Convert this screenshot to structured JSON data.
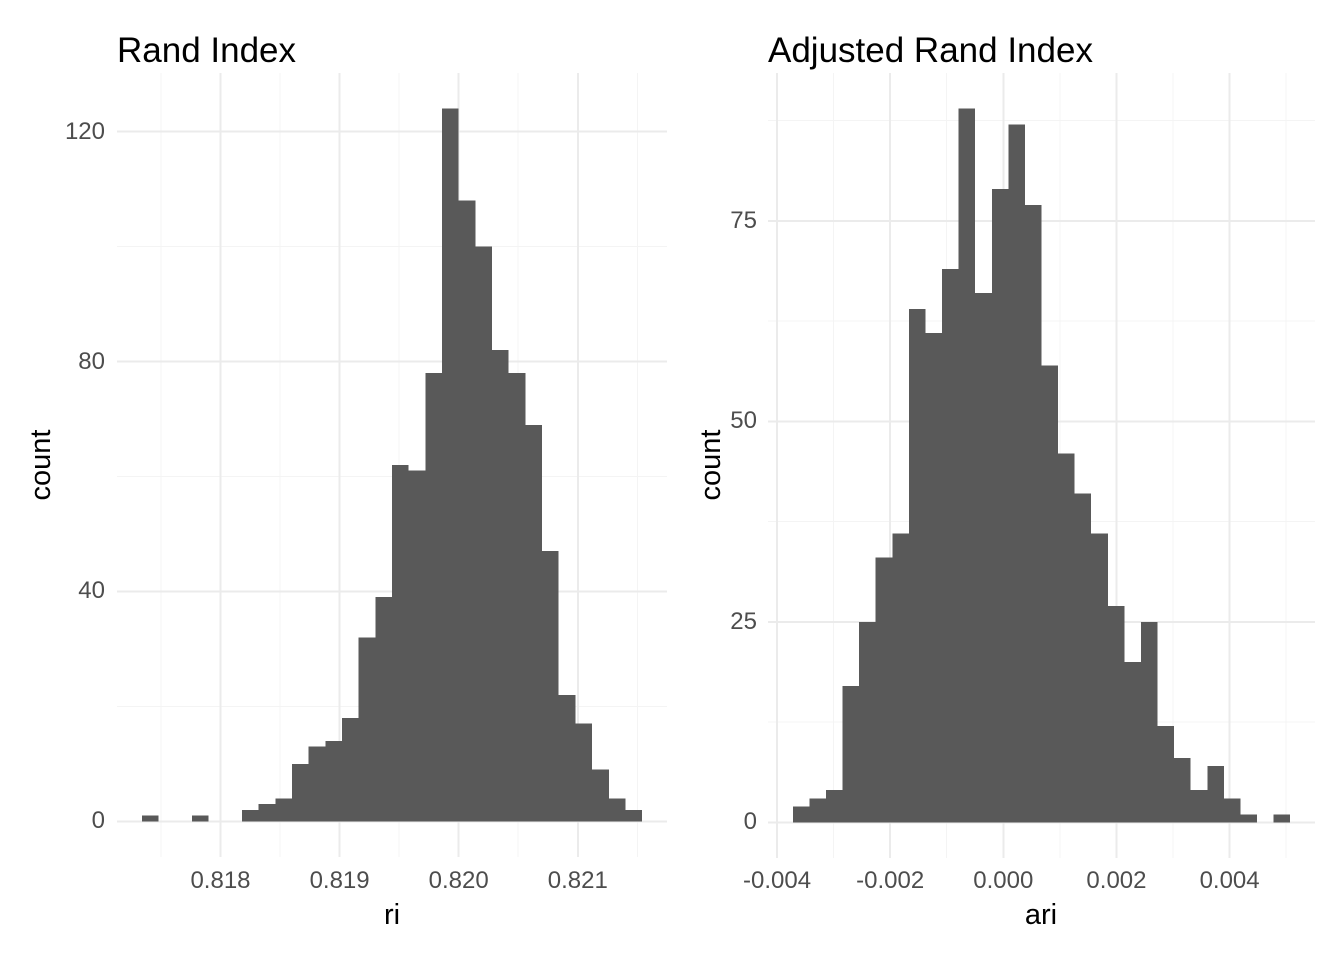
{
  "figure": {
    "background": "#FFFFFF",
    "bar_fill": "#595959",
    "grid_major_color": "#EBEBEB",
    "grid_minor_color": "#F4F4F4",
    "tick_label_color": "#4D4D4D",
    "title_color": "#000000"
  },
  "chart_data": [
    {
      "type": "bar",
      "subtype": "histogram",
      "title": "Rand Index",
      "xlabel": "ri",
      "ylabel": "count",
      "grid": true,
      "legend": "none",
      "bin_start": 0.81734,
      "bin_width": 0.00014,
      "counts": [
        1,
        0,
        0,
        1,
        0,
        0,
        2,
        3,
        4,
        10,
        13,
        14,
        18,
        32,
        39,
        62,
        61,
        78,
        124,
        108,
        100,
        82,
        78,
        69,
        47,
        22,
        17,
        9,
        4,
        2
      ],
      "total_n": 1000,
      "x_ticks": {
        "values": [
          0.818,
          0.819,
          0.82,
          0.821
        ],
        "labels": [
          "0.818",
          "0.819",
          "0.820",
          "0.821"
        ]
      },
      "y_ticks": {
        "values": [
          0,
          40,
          80,
          120
        ],
        "labels": [
          "0",
          "40",
          "80",
          "120"
        ]
      },
      "x_minor": [
        0.8175,
        0.8185,
        0.8195,
        0.8205,
        0.8215
      ],
      "y_minor": [
        20,
        60,
        100
      ],
      "xlim": [
        0.817131,
        0.821749
      ],
      "ylim": [
        -6.2,
        130.2
      ]
    },
    {
      "type": "bar",
      "subtype": "histogram",
      "title": "Adjusted Rand Index",
      "xlabel": "ari",
      "ylabel": "count",
      "grid": true,
      "legend": "none",
      "bin_start": -0.00372,
      "bin_width": 0.000293,
      "counts": [
        2,
        3,
        4,
        17,
        25,
        33,
        36,
        64,
        61,
        69,
        89,
        66,
        79,
        87,
        77,
        57,
        46,
        41,
        36,
        27,
        20,
        25,
        12,
        8,
        4,
        7,
        3,
        1,
        0,
        1
      ],
      "total_n": 1000,
      "x_ticks": {
        "values": [
          -0.004,
          -0.002,
          0.0,
          0.002,
          0.004
        ],
        "labels": [
          "-0.004",
          "-0.002",
          "0.000",
          "0.002",
          "0.004"
        ]
      },
      "y_ticks": {
        "values": [
          0,
          25,
          50,
          75
        ],
        "labels": [
          "0",
          "25",
          "50",
          "75"
        ]
      },
      "x_minor": [
        -0.003,
        -0.001,
        0.001,
        0.003,
        0.005
      ],
      "y_minor": [
        12.5,
        37.5,
        62.5,
        87.5
      ],
      "xlim": [
        -0.0041595,
        0.0055095
      ],
      "ylim": [
        -4.45,
        93.45
      ]
    }
  ]
}
